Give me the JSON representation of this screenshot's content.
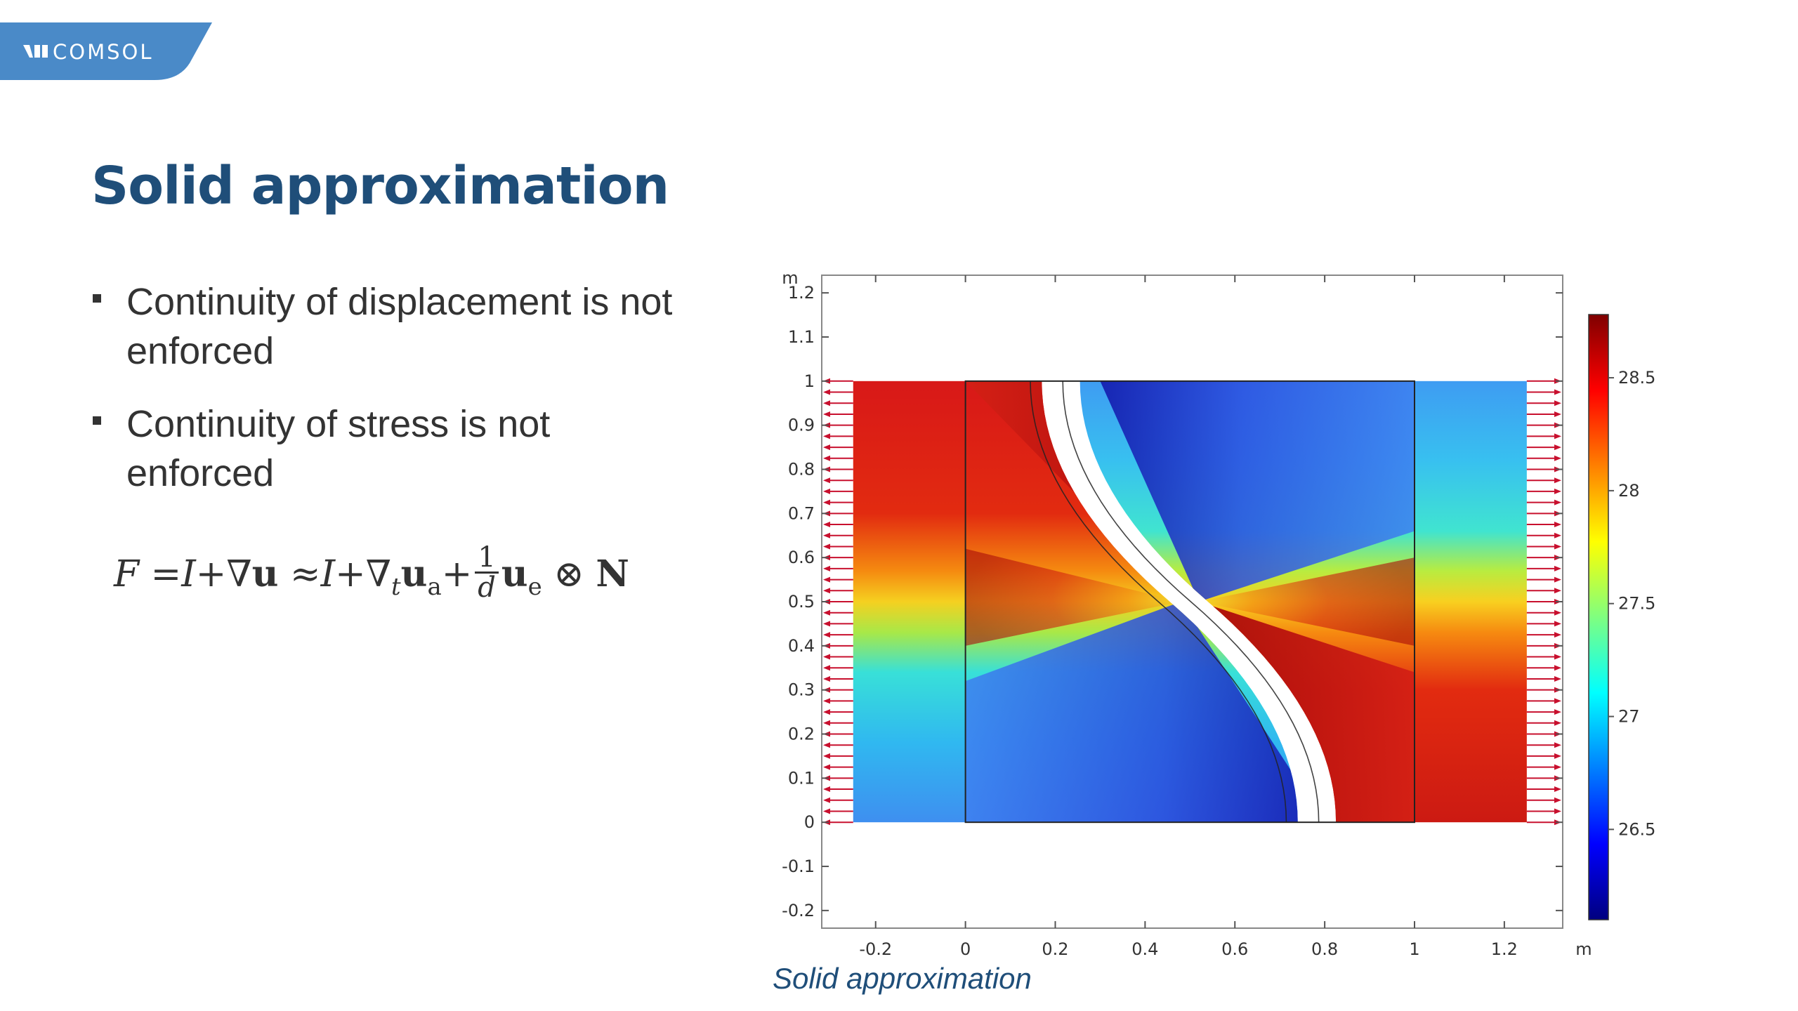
{
  "logo": {
    "text": "COMSOL"
  },
  "slide": {
    "title": "Solid approximation",
    "bullets": [
      "Continuity of displacement is not enforced",
      "Continuity of stress is not enforced"
    ],
    "caption": "Solid approximation"
  },
  "formula": {
    "F": "F",
    "eq": "=",
    "I1": "I",
    "plus1": "+",
    "nabla1": "∇",
    "u": "u",
    "approx": "≈",
    "I2": "I",
    "plus2": "+",
    "nabla2": "∇",
    "t": "t",
    "ua": "u",
    "a": "a",
    "plus3": "+",
    "one": "1",
    "d": "d",
    "ue": "u",
    "e": "e",
    "otimes": "⊗",
    "N": "N"
  },
  "colors": {
    "brand": "#1f4e79",
    "logo_tab": "#4a8ac8",
    "arrows": "#c8102e",
    "colormap": [
      "#00007f",
      "#0000ff",
      "#00ffff",
      "#ffff00",
      "#ff0000",
      "#7f0000"
    ]
  },
  "plot": {
    "x_unit": "m",
    "y_unit": "m",
    "x_ticks": [
      "-0.2",
      "0",
      "0.2",
      "0.4",
      "0.6",
      "0.8",
      "1",
      "1.2"
    ],
    "x_tick_values": [
      -0.2,
      0,
      0.2,
      0.4,
      0.6,
      0.8,
      1,
      1.2
    ],
    "y_ticks": [
      "-0.2",
      "-0.1",
      "0",
      "0.1",
      "0.2",
      "0.3",
      "0.4",
      "0.5",
      "0.6",
      "0.7",
      "0.8",
      "0.9",
      "1",
      "1.1",
      "1.2"
    ],
    "y_tick_values": [
      -0.2,
      -0.1,
      0,
      0.1,
      0.2,
      0.3,
      0.4,
      0.5,
      0.6,
      0.7,
      0.8,
      0.9,
      1,
      1.1,
      1.2
    ],
    "x_range": [
      -0.32,
      1.33
    ],
    "y_range": [
      -0.24,
      1.24
    ],
    "colorbar_ticks": [
      "28.5",
      "28",
      "27.5",
      "27",
      "26.5"
    ],
    "colorbar_tick_values": [
      28.5,
      28,
      27.5,
      27,
      26.5
    ],
    "colorbar_range": [
      26.1,
      28.78
    ]
  }
}
